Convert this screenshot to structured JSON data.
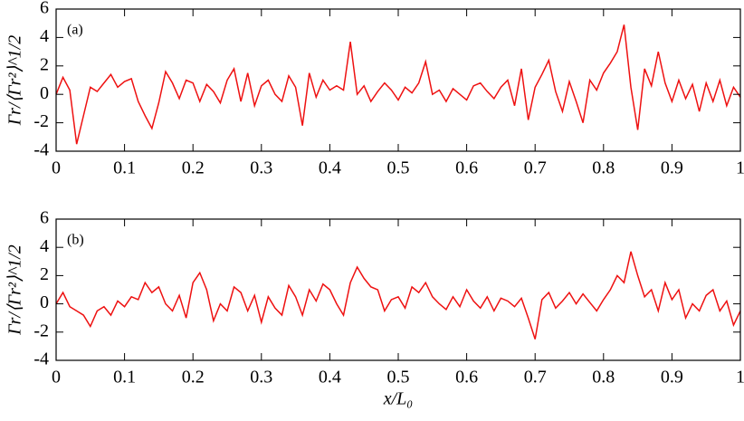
{
  "chart_data": [
    {
      "type": "line",
      "annotation": "(a)",
      "ylabel": "Γr/⟨Γr²⟩^1/2",
      "x": [
        0,
        0.01,
        0.02,
        0.03,
        0.04,
        0.05,
        0.06,
        0.07,
        0.08,
        0.09,
        0.1,
        0.11,
        0.12,
        0.13,
        0.14,
        0.15,
        0.16,
        0.17,
        0.18,
        0.19,
        0.2,
        0.21,
        0.22,
        0.23,
        0.24,
        0.25,
        0.26,
        0.27,
        0.28,
        0.29,
        0.3,
        0.31,
        0.32,
        0.33,
        0.34,
        0.35,
        0.36,
        0.37,
        0.38,
        0.39,
        0.4,
        0.41,
        0.42,
        0.43,
        0.44,
        0.45,
        0.46,
        0.47,
        0.48,
        0.49,
        0.5,
        0.51,
        0.52,
        0.53,
        0.54,
        0.55,
        0.56,
        0.57,
        0.58,
        0.59,
        0.6,
        0.61,
        0.62,
        0.63,
        0.64,
        0.65,
        0.66,
        0.67,
        0.68,
        0.69,
        0.7,
        0.71,
        0.72,
        0.73,
        0.74,
        0.75,
        0.76,
        0.77,
        0.78,
        0.79,
        0.8,
        0.81,
        0.82,
        0.83,
        0.84,
        0.85,
        0.86,
        0.87,
        0.88,
        0.89,
        0.9,
        0.91,
        0.92,
        0.93,
        0.94,
        0.95,
        0.96,
        0.97,
        0.98,
        0.99,
        1
      ],
      "series": [
        {
          "color": "#ee1111",
          "values": [
            0,
            1.2,
            0.3,
            -3.5,
            -1.5,
            0.5,
            0.2,
            0.8,
            1.4,
            0.5,
            0.9,
            1.1,
            -0.5,
            -1.5,
            -2.4,
            -0.6,
            1.6,
            0.8,
            -0.3,
            1.0,
            0.8,
            -0.5,
            0.7,
            0.2,
            -0.6,
            1.0,
            1.8,
            -0.5,
            1.5,
            -0.8,
            0.6,
            1.0,
            0.0,
            -0.5,
            1.3,
            0.5,
            -2.2,
            1.5,
            -0.2,
            1.0,
            0.3,
            0.6,
            0.3,
            3.7,
            0.0,
            0.6,
            -0.5,
            0.2,
            0.8,
            0.3,
            -0.4,
            0.5,
            0.1,
            0.8,
            2.3,
            0.0,
            0.3,
            -0.5,
            0.4,
            0.0,
            -0.4,
            0.6,
            0.8,
            0.2,
            -0.3,
            0.5,
            1.0,
            -0.8,
            1.8,
            -1.8,
            0.5,
            1.4,
            2.4,
            0.2,
            -1.2,
            0.9,
            -0.5,
            -2.0,
            1.0,
            0.3,
            1.5,
            2.2,
            3.0,
            4.9,
            0.5,
            -2.5,
            1.8,
            0.6,
            3.0,
            0.8,
            -0.5,
            1.0,
            -0.3,
            0.7,
            -1.2,
            0.8,
            -0.5,
            1.0,
            -0.8,
            0.5,
            -0.2
          ]
        }
      ],
      "xlim": [
        0,
        1
      ],
      "ylim": [
        -4,
        6
      ],
      "xticks": [
        0,
        0.1,
        0.2,
        0.3,
        0.4,
        0.5,
        0.6,
        0.7,
        0.8,
        0.9,
        1
      ],
      "yticks": [
        -4,
        -2,
        0,
        2,
        4,
        6
      ]
    },
    {
      "type": "line",
      "annotation": "(b)",
      "ylabel": "Γr/⟨Γr²⟩^1/2",
      "xlabel": "x/L₀",
      "x": [
        0,
        0.01,
        0.02,
        0.03,
        0.04,
        0.05,
        0.06,
        0.07,
        0.08,
        0.09,
        0.1,
        0.11,
        0.12,
        0.13,
        0.14,
        0.15,
        0.16,
        0.17,
        0.18,
        0.19,
        0.2,
        0.21,
        0.22,
        0.23,
        0.24,
        0.25,
        0.26,
        0.27,
        0.28,
        0.29,
        0.3,
        0.31,
        0.32,
        0.33,
        0.34,
        0.35,
        0.36,
        0.37,
        0.38,
        0.39,
        0.4,
        0.41,
        0.42,
        0.43,
        0.44,
        0.45,
        0.46,
        0.47,
        0.48,
        0.49,
        0.5,
        0.51,
        0.52,
        0.53,
        0.54,
        0.55,
        0.56,
        0.57,
        0.58,
        0.59,
        0.6,
        0.61,
        0.62,
        0.63,
        0.64,
        0.65,
        0.66,
        0.67,
        0.68,
        0.69,
        0.7,
        0.71,
        0.72,
        0.73,
        0.74,
        0.75,
        0.76,
        0.77,
        0.78,
        0.79,
        0.8,
        0.81,
        0.82,
        0.83,
        0.84,
        0.85,
        0.86,
        0.87,
        0.88,
        0.89,
        0.9,
        0.91,
        0.92,
        0.93,
        0.94,
        0.95,
        0.96,
        0.97,
        0.98,
        0.99,
        1
      ],
      "series": [
        {
          "color": "#ee1111",
          "values": [
            0,
            0.8,
            -0.2,
            -0.5,
            -0.8,
            -1.6,
            -0.5,
            -0.2,
            -0.8,
            0.2,
            -0.2,
            0.5,
            0.3,
            1.5,
            0.8,
            1.2,
            0.0,
            -0.5,
            0.6,
            -1.0,
            1.5,
            2.2,
            1.0,
            -1.2,
            0.0,
            -0.5,
            1.2,
            0.8,
            -0.5,
            0.6,
            -1.3,
            0.5,
            -0.3,
            -0.8,
            1.3,
            0.5,
            -0.8,
            1.0,
            0.2,
            1.4,
            1.0,
            0.0,
            -0.8,
            1.5,
            2.6,
            1.8,
            1.2,
            1.0,
            -0.5,
            0.3,
            0.5,
            -0.3,
            1.2,
            0.8,
            1.5,
            0.5,
            0.0,
            -0.4,
            0.5,
            -0.2,
            1.0,
            0.2,
            -0.3,
            0.5,
            -0.5,
            0.4,
            0.2,
            -0.2,
            0.4,
            -1.0,
            -2.5,
            0.3,
            0.8,
            -0.3,
            0.2,
            0.8,
            0.0,
            0.7,
            0.1,
            -0.5,
            0.3,
            1.0,
            2.0,
            1.5,
            3.7,
            2.0,
            0.5,
            1.0,
            -0.5,
            1.5,
            0.3,
            1.0,
            -1.0,
            0.0,
            -0.5,
            0.6,
            1.0,
            -0.5,
            0.2,
            -1.5,
            -0.5
          ]
        }
      ],
      "xlim": [
        0,
        1
      ],
      "ylim": [
        -4,
        6
      ],
      "xticks": [
        0,
        0.1,
        0.2,
        0.3,
        0.4,
        0.5,
        0.6,
        0.7,
        0.8,
        0.9,
        1
      ],
      "yticks": [
        -4,
        -2,
        0,
        2,
        4,
        6
      ]
    }
  ]
}
